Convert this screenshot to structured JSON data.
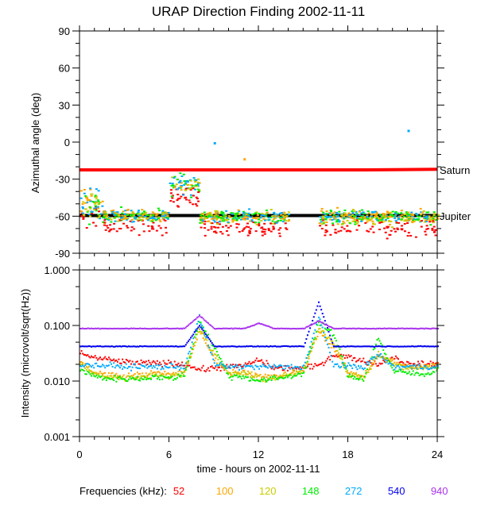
{
  "chart_data": [
    {
      "type": "scatter",
      "title": "URAP Direction Finding  2002-11-11",
      "xlabel": "time - hours on 2002-11-11",
      "ylabel": "Azimuthal angle (deg)",
      "xlim": [
        0,
        24
      ],
      "ylim": [
        -90,
        90
      ],
      "xticks": [
        "0",
        "6",
        "12",
        "18",
        "24"
      ],
      "yticks": [
        "90",
        "60",
        "30",
        "0",
        "-30",
        "-60",
        "-90"
      ],
      "reference_lines": [
        {
          "name": "Saturn",
          "color": "#ff0000",
          "y": [
            -22.5,
            -22.5,
            -22.0
          ],
          "x": [
            0,
            19.2,
            24
          ]
        },
        {
          "name": "Jupiter",
          "color": "#000000",
          "y": [
            -59.5,
            -59.5
          ],
          "x": [
            0,
            24
          ]
        }
      ],
      "scatter_clusters": [
        {
          "x_range": [
            0,
            1.5
          ],
          "y_center": -50,
          "y_spread": 20
        },
        {
          "x_range": [
            1.5,
            6
          ],
          "y_center": -59,
          "y_spread": 8
        },
        {
          "x_range": [
            6,
            8
          ],
          "y_center": -35,
          "y_spread": 14
        },
        {
          "x_range": [
            8,
            14
          ],
          "y_center": -60,
          "y_spread": 8
        },
        {
          "x_range": [
            16,
            24
          ],
          "y_center": -60,
          "y_spread": 9
        }
      ],
      "outliers": [
        {
          "x": 9.0,
          "y": 0,
          "series": "272"
        },
        {
          "x": 22.0,
          "y": 10,
          "series": "272"
        },
        {
          "x": 11.0,
          "y": -13,
          "series": "100"
        }
      ]
    },
    {
      "type": "line",
      "ylabel": "Intensity (microvolt/sqrt(Hz))",
      "xlabel": "time - hours on 2002-11-11",
      "xlim": [
        0,
        24
      ],
      "ylim": [
        0.001,
        1.0
      ],
      "yscale": "log",
      "xticks": [
        "0",
        "6",
        "12",
        "18",
        "24"
      ],
      "yticks": [
        "1.000",
        "0.100",
        "0.010",
        "0.001"
      ],
      "x": [
        0,
        1,
        2,
        3,
        4,
        5,
        6,
        7,
        8,
        9,
        10,
        11,
        12,
        13,
        14,
        15,
        16,
        17,
        18,
        19,
        20,
        21,
        22,
        23,
        24
      ],
      "series": [
        {
          "name": "52",
          "color": "#ff0000",
          "values": [
            0.032,
            0.026,
            0.024,
            0.022,
            0.021,
            0.021,
            0.021,
            0.02,
            0.016,
            0.017,
            0.018,
            0.019,
            0.024,
            0.017,
            0.017,
            0.017,
            0.019,
            0.03,
            0.027,
            0.023,
            0.02,
            0.027,
            0.02,
            0.02,
            0.021
          ]
        },
        {
          "name": "100",
          "color": "#ffa500",
          "values": [
            0.022,
            0.014,
            0.013,
            0.012,
            0.013,
            0.014,
            0.013,
            0.015,
            0.08,
            0.025,
            0.014,
            0.015,
            0.012,
            0.012,
            0.013,
            0.015,
            0.08,
            0.04,
            0.014,
            0.012,
            0.03,
            0.022,
            0.018,
            0.018,
            0.02
          ]
        },
        {
          "name": "120",
          "color": "#cccc00",
          "values": [
            0.02,
            0.013,
            0.012,
            0.011,
            0.012,
            0.013,
            0.012,
            0.014,
            0.09,
            0.03,
            0.013,
            0.014,
            0.011,
            0.011,
            0.013,
            0.016,
            0.09,
            0.05,
            0.013,
            0.011,
            0.03,
            0.02,
            0.017,
            0.017,
            0.018
          ]
        },
        {
          "name": "148",
          "color": "#00ee00",
          "values": [
            0.016,
            0.012,
            0.011,
            0.011,
            0.011,
            0.012,
            0.011,
            0.013,
            0.12,
            0.04,
            0.012,
            0.012,
            0.01,
            0.011,
            0.012,
            0.014,
            0.11,
            0.07,
            0.012,
            0.011,
            0.06,
            0.015,
            0.014,
            0.013,
            0.016
          ]
        },
        {
          "name": "272",
          "color": "#00aaff",
          "values": [
            0.02,
            0.019,
            0.019,
            0.018,
            0.018,
            0.018,
            0.018,
            0.018,
            0.14,
            0.02,
            0.018,
            0.018,
            0.018,
            0.018,
            0.018,
            0.018,
            0.14,
            0.02,
            0.018,
            0.018,
            0.03,
            0.018,
            0.018,
            0.018,
            0.018
          ]
        },
        {
          "name": "540",
          "color": "#0000ee",
          "values": [
            0.042,
            0.042,
            0.042,
            0.042,
            0.042,
            0.042,
            0.042,
            0.042,
            0.1,
            0.042,
            0.042,
            0.042,
            0.042,
            0.042,
            0.042,
            0.042,
            0.26,
            0.042,
            0.042,
            0.042,
            0.042,
            0.042,
            0.042,
            0.042,
            0.042
          ]
        },
        {
          "name": "940",
          "color": "#aa33ee",
          "values": [
            0.088,
            0.088,
            0.088,
            0.088,
            0.088,
            0.088,
            0.088,
            0.088,
            0.15,
            0.088,
            0.088,
            0.088,
            0.11,
            0.088,
            0.088,
            0.088,
            0.12,
            0.088,
            0.088,
            0.088,
            0.088,
            0.088,
            0.088,
            0.088,
            0.088
          ]
        }
      ]
    }
  ],
  "legend": {
    "label": "Frequencies (kHz):",
    "items": [
      {
        "name": "52",
        "color": "#ff0000"
      },
      {
        "name": "100",
        "color": "#ffa500"
      },
      {
        "name": "120",
        "color": "#cccc00"
      },
      {
        "name": "148",
        "color": "#00ee00"
      },
      {
        "name": "272",
        "color": "#00aaff"
      },
      {
        "name": "540",
        "color": "#0000ee"
      },
      {
        "name": "940",
        "color": "#aa33ee"
      }
    ]
  }
}
